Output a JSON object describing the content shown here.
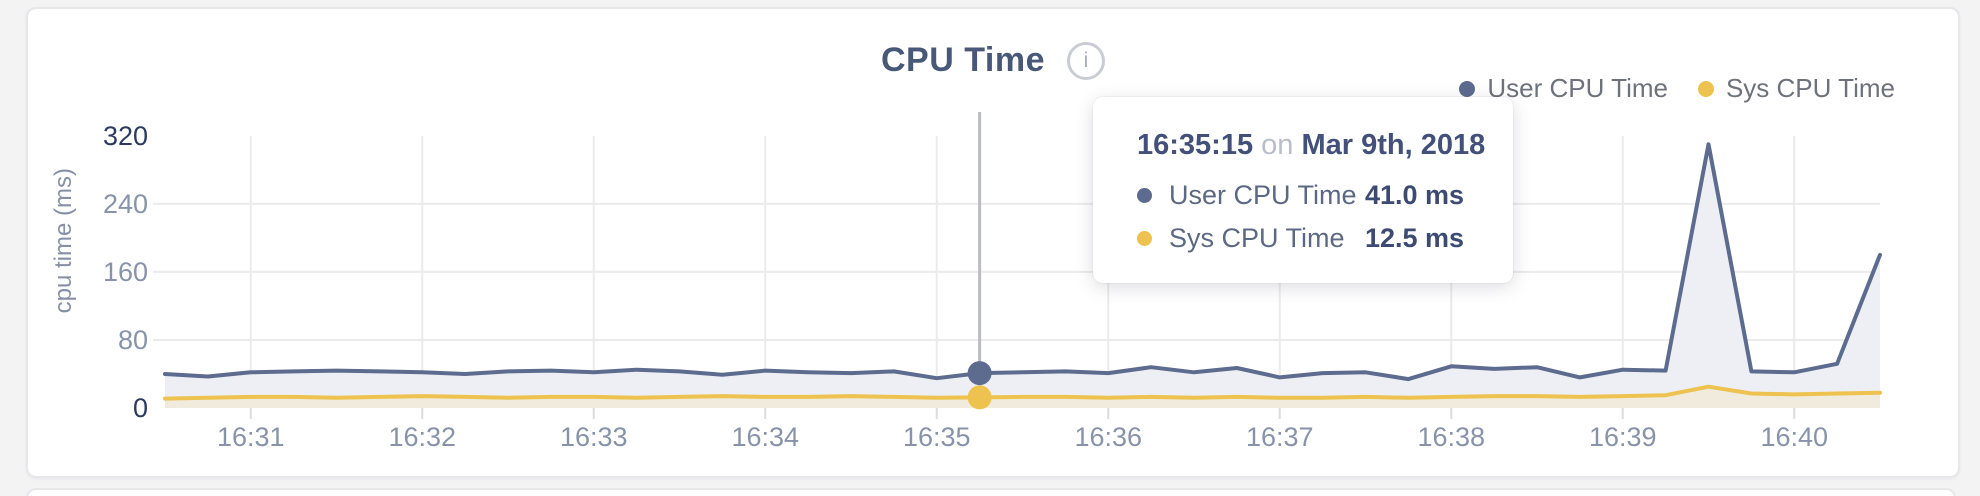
{
  "panel": {
    "title": "CPU Time",
    "info_glyph": "i",
    "legend": [
      {
        "label": "User CPU Time",
        "color": "#5d6b8e"
      },
      {
        "label": "Sys CPU Time",
        "color": "#eec24f"
      }
    ]
  },
  "tooltip": {
    "time": "16:35:15",
    "separator": "on",
    "date": "Mar 9th, 2018",
    "rows": [
      {
        "label": "User CPU Time",
        "value": "41.0 ms",
        "color": "#5d6b8e"
      },
      {
        "label": "Sys CPU Time",
        "value": "12.5 ms",
        "color": "#eec24f"
      }
    ]
  },
  "chart_data": {
    "type": "area",
    "title": "CPU Time",
    "xlabel": "",
    "ylabel": "cpu time (ms)",
    "ylim": [
      0,
      355
    ],
    "grid": true,
    "legend_position": "top-right",
    "yticks": [
      {
        "value": 320,
        "strong": true,
        "grid": false
      },
      {
        "value": 240,
        "strong": false,
        "grid": true
      },
      {
        "value": 160,
        "strong": false,
        "grid": true
      },
      {
        "value": 80,
        "strong": false,
        "grid": true
      },
      {
        "value": 0,
        "strong": true,
        "grid": false
      }
    ],
    "xticks": [
      "16:31",
      "16:32",
      "16:33",
      "16:34",
      "16:35",
      "16:36",
      "16:37",
      "16:38",
      "16:39",
      "16:40"
    ],
    "x": [
      "16:30:30",
      "16:30:45",
      "16:31:00",
      "16:31:15",
      "16:31:30",
      "16:31:45",
      "16:32:00",
      "16:32:15",
      "16:32:30",
      "16:32:45",
      "16:33:00",
      "16:33:15",
      "16:33:30",
      "16:33:45",
      "16:34:00",
      "16:34:15",
      "16:34:30",
      "16:34:45",
      "16:35:00",
      "16:35:15",
      "16:35:30",
      "16:35:45",
      "16:36:00",
      "16:36:15",
      "16:36:30",
      "16:36:45",
      "16:37:00",
      "16:37:15",
      "16:37:30",
      "16:37:45",
      "16:38:00",
      "16:38:15",
      "16:38:30",
      "16:38:45",
      "16:39:00",
      "16:39:15",
      "16:39:30",
      "16:39:45",
      "16:40:00",
      "16:40:15",
      "16:40:30"
    ],
    "series": [
      {
        "name": "User CPU Time",
        "color": "#5d6b8e",
        "fill": "#edeff4",
        "values": [
          40,
          37,
          42,
          43,
          44,
          43,
          42,
          40,
          43,
          44,
          42,
          45,
          43,
          39,
          44,
          42,
          41,
          43,
          35,
          41,
          42,
          43,
          41,
          48,
          42,
          47,
          36,
          41,
          42,
          34,
          49,
          46,
          48,
          36,
          45,
          44,
          310,
          43,
          42,
          52,
          180
        ]
      },
      {
        "name": "Sys CPU Time",
        "color": "#eec24f",
        "fill": "#f0ebdd",
        "values": [
          11,
          12,
          13,
          13,
          12,
          13,
          14,
          13,
          12,
          13,
          13,
          12,
          13,
          14,
          13,
          13,
          14,
          13,
          12,
          12.5,
          13,
          13,
          12,
          13,
          12,
          13,
          12,
          12,
          13,
          12,
          13,
          14,
          14,
          13,
          14,
          15,
          25,
          17,
          16,
          17,
          18
        ]
      }
    ],
    "highlight": {
      "time": "16:35:15",
      "index": 19
    }
  },
  "colors": {
    "grid": "#ebebeb",
    "axis_stub": "#dcdcdf",
    "crosshair": "#b9bdc3",
    "card_bg": "#ffffff",
    "page_bg": "#f3f3f4"
  }
}
